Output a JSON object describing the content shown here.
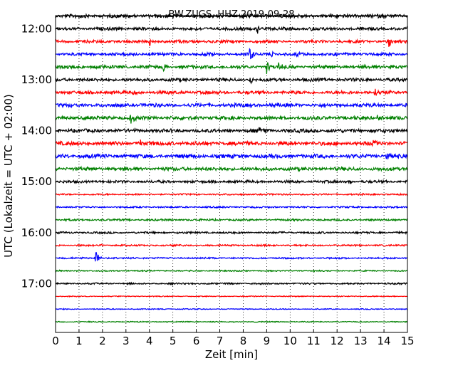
{
  "chart_data": {
    "type": "line",
    "title": "BW.ZUGS..HHZ 2019-09-28",
    "xlabel": "Zeit  [min]",
    "ylabel": "UTC (Lokalzeit = UTC + 02:00)",
    "xlim": [
      0,
      15
    ],
    "x_ticks": [
      "0",
      "1",
      "2",
      "3",
      "4",
      "5",
      "6",
      "7",
      "8",
      "9",
      "10",
      "11",
      "12",
      "13",
      "14",
      "15"
    ],
    "y_tick_labels": [
      "12:00",
      "13:00",
      "14:00",
      "15:00",
      "16:00",
      "17:00"
    ],
    "grid": "vertical-dotted",
    "colors": [
      "#000000",
      "#ff0000",
      "#0000ff",
      "#008000"
    ],
    "traces": [
      {
        "start": "11:45",
        "color": "#000000",
        "amp": 2.2,
        "events": []
      },
      {
        "start": "12:00",
        "color": "#000000",
        "amp": 1.8,
        "events": [
          {
            "t": 8.6,
            "a": 10
          },
          {
            "t": 10.9,
            "a": 3
          }
        ]
      },
      {
        "start": "12:15",
        "color": "#ff0000",
        "amp": 1.8,
        "events": [
          {
            "t": 4.0,
            "a": 9
          },
          {
            "t": 14.2,
            "a": 12
          }
        ]
      },
      {
        "start": "12:30",
        "color": "#0000ff",
        "amp": 1.8,
        "events": [
          {
            "t": 8.3,
            "a": 16
          },
          {
            "t": 9.2,
            "a": 7
          },
          {
            "t": 10.3,
            "a": 4
          }
        ]
      },
      {
        "start": "12:45",
        "color": "#008000",
        "amp": 2.0,
        "events": [
          {
            "t": 4.6,
            "a": 10
          },
          {
            "t": 9.0,
            "a": 11
          },
          {
            "t": 9.5,
            "a": 9
          },
          {
            "t": 14.3,
            "a": 6
          }
        ]
      },
      {
        "start": "13:00",
        "color": "#000000",
        "amp": 2.0,
        "events": [
          {
            "t": 8.3,
            "a": 10
          }
        ]
      },
      {
        "start": "13:15",
        "color": "#ff0000",
        "amp": 2.0,
        "events": [
          {
            "t": 3.3,
            "a": 9
          },
          {
            "t": 13.6,
            "a": 9
          }
        ]
      },
      {
        "start": "13:30",
        "color": "#0000ff",
        "amp": 2.2,
        "events": [
          {
            "t": 8.9,
            "a": 7
          }
        ]
      },
      {
        "start": "13:45",
        "color": "#008000",
        "amp": 2.2,
        "events": [
          {
            "t": 3.2,
            "a": 11
          },
          {
            "t": 13.7,
            "a": 7
          }
        ]
      },
      {
        "start": "14:00",
        "color": "#000000",
        "amp": 2.2,
        "events": [
          {
            "t": 8.6,
            "a": 9
          }
        ]
      },
      {
        "start": "14:15",
        "color": "#ff0000",
        "amp": 2.4,
        "events": [
          {
            "t": 3.6,
            "a": 8
          },
          {
            "t": 13.5,
            "a": 8
          }
        ]
      },
      {
        "start": "14:30",
        "color": "#0000ff",
        "amp": 2.4,
        "events": [
          {
            "t": 14.1,
            "a": 8
          }
        ]
      },
      {
        "start": "14:45",
        "color": "#008000",
        "amp": 2.2,
        "events": []
      },
      {
        "start": "15:00",
        "color": "#000000",
        "amp": 1.6,
        "events": [
          {
            "t": 12.5,
            "a": 6
          }
        ]
      },
      {
        "start": "15:15",
        "color": "#ff0000",
        "amp": 1.0,
        "events": []
      },
      {
        "start": "15:30",
        "color": "#0000ff",
        "amp": 1.0,
        "events": []
      },
      {
        "start": "15:45",
        "color": "#008000",
        "amp": 1.2,
        "events": []
      },
      {
        "start": "16:00",
        "color": "#000000",
        "amp": 1.2,
        "events": []
      },
      {
        "start": "16:15",
        "color": "#ff0000",
        "amp": 1.0,
        "events": [
          {
            "t": 1.9,
            "a": 3
          }
        ]
      },
      {
        "start": "16:30",
        "color": "#0000ff",
        "amp": 1.0,
        "events": [
          {
            "t": 1.7,
            "a": 14
          }
        ]
      },
      {
        "start": "16:45",
        "color": "#008000",
        "amp": 0.8,
        "events": []
      },
      {
        "start": "17:00",
        "color": "#000000",
        "amp": 1.0,
        "events": []
      },
      {
        "start": "17:15",
        "color": "#ff0000",
        "amp": 0.6,
        "events": []
      },
      {
        "start": "17:30",
        "color": "#0000ff",
        "amp": 0.6,
        "events": []
      },
      {
        "start": "17:45",
        "color": "#008000",
        "amp": 0.6,
        "events": []
      }
    ]
  }
}
